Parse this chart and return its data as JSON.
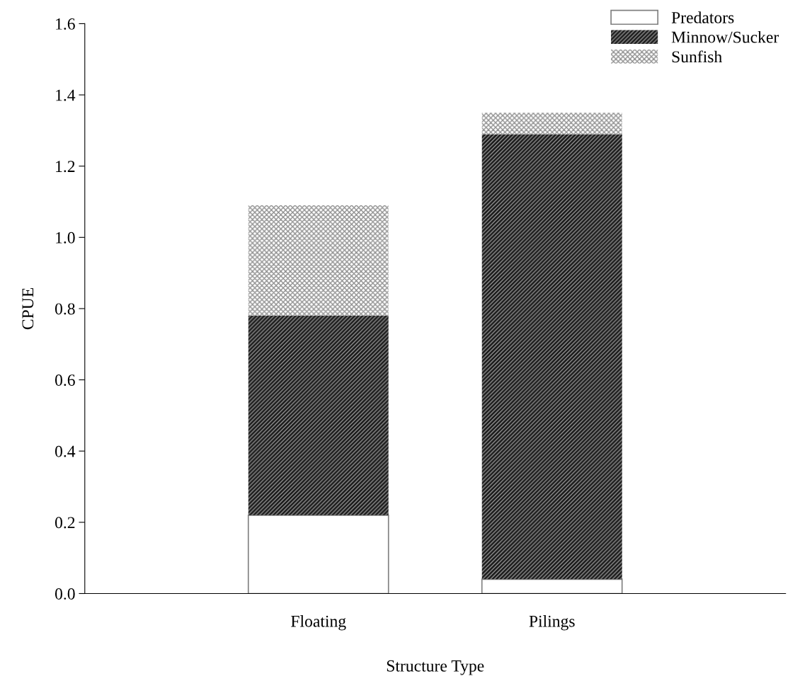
{
  "chart_data": {
    "type": "bar",
    "stacked": true,
    "xlabel": "Structure Type",
    "ylabel": "CPUE",
    "categories": [
      "Floating",
      "Pilings"
    ],
    "series": [
      {
        "name": "Predators",
        "color": "#ffffff",
        "values": [
          0.22,
          0.04
        ]
      },
      {
        "name": "Minnow/Sucker",
        "color": "#1a1a1a",
        "values": [
          0.56,
          1.25
        ]
      },
      {
        "name": "Sunfish",
        "color": "#ffffff",
        "values": [
          0.31,
          0.06
        ]
      }
    ],
    "ylim": [
      0,
      1.6
    ],
    "yticks": [
      {
        "value": 0,
        "label": "0.0"
      },
      {
        "value": 0.2,
        "label": "0.2"
      },
      {
        "value": 0.4,
        "label": "0.4"
      },
      {
        "value": 0.6,
        "label": "0.6"
      },
      {
        "value": 0.8,
        "label": "0.8"
      },
      {
        "value": 1.0,
        "label": "1.0"
      },
      {
        "value": 1.2,
        "label": "1.2"
      },
      {
        "value": 1.4,
        "label": "1.4"
      },
      {
        "value": 1.6,
        "label": "1.6"
      }
    ],
    "legend": "top right",
    "grid": false
  }
}
